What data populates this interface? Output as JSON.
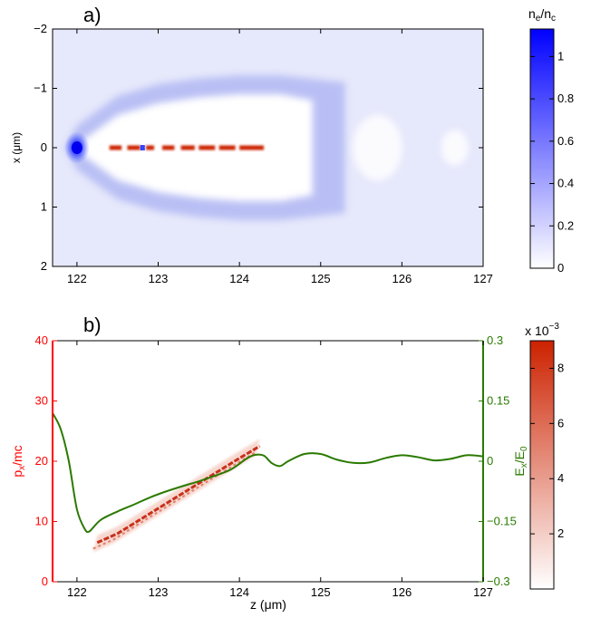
{
  "chart_data": [
    {
      "type": "heatmap",
      "panel_label": "a)",
      "title": "",
      "xlabel": "",
      "ylabel": "x (μm)",
      "xlim": [
        121.7,
        127.0
      ],
      "ylim": [
        -2,
        2
      ],
      "y_inverted": true,
      "xticks": [
        122,
        123,
        124,
        125,
        126,
        127
      ],
      "yticks": [
        -2,
        -1,
        0,
        1,
        2
      ],
      "ytick_labels": [
        "−2",
        "−1",
        "0",
        "1",
        "2"
      ],
      "colorbar": {
        "label": "n_e/n_c",
        "label_main": "n",
        "label_sub1": "e",
        "label_sep": "/n",
        "label_sub2": "c",
        "range": [
          0,
          1.13
        ],
        "ticks": [
          0,
          0.2,
          0.4,
          0.6,
          0.8,
          1
        ],
        "tick_labels": [
          "0",
          "0.2",
          "0.4",
          "0.6",
          "0.8",
          "1"
        ],
        "colors": [
          "#ffffff",
          "#0000ff"
        ]
      },
      "features": {
        "density_peak": {
          "z": 122.0,
          "x": 0,
          "value": 1.1
        },
        "bubble_sheath": [
          {
            "z": 122.0,
            "x_half_width": 0.05
          },
          {
            "z": 122.5,
            "x_half_width": 0.55
          },
          {
            "z": 123.0,
            "x_half_width": 0.75
          },
          {
            "z": 123.5,
            "x_half_width": 0.85
          },
          {
            "z": 124.0,
            "x_half_width": 0.9
          },
          {
            "z": 124.5,
            "x_half_width": 0.9
          }
        ],
        "electron_beam": {
          "z_start": 122.4,
          "z_end": 124.3,
          "x": 0,
          "color": "#cc2200"
        },
        "secondary_bubbles": [
          {
            "z": 125.7,
            "x_half_width": 0.55
          },
          {
            "z": 126.65,
            "x_half_width": 0.3
          }
        ]
      }
    },
    {
      "type": "heatmap",
      "panel_label": "b)",
      "title": "",
      "xlabel": "z (μm)",
      "ylabel": "p_x/mc",
      "ylabel_main": "p",
      "ylabel_sub": "x",
      "ylabel_rest": "/mc",
      "xlim": [
        121.7,
        127.0
      ],
      "ylim": [
        0,
        40
      ],
      "xticks": [
        122,
        123,
        124,
        125,
        126,
        127
      ],
      "yticks": [
        0,
        10,
        20,
        30,
        40
      ],
      "colorbar": {
        "label": "x 10^-3",
        "label_main": "x 10",
        "label_exp": "−3",
        "range": [
          0,
          0.009
        ],
        "ticks": [
          2,
          4,
          6,
          8
        ],
        "tick_labels": [
          "2",
          "4",
          "6",
          "8"
        ],
        "colors": [
          "#ffffff",
          "#cc2200"
        ]
      },
      "phase_space_beam": [
        {
          "z": 122.25,
          "p": 6.5
        },
        {
          "z": 122.5,
          "p": 8.0
        },
        {
          "z": 122.8,
          "p": 10.5
        },
        {
          "z": 123.1,
          "p": 13.0
        },
        {
          "z": 123.4,
          "p": 15.5
        },
        {
          "z": 123.7,
          "p": 18.0
        },
        {
          "z": 124.0,
          "p": 20.5
        },
        {
          "z": 124.25,
          "p": 22.5
        }
      ],
      "secondary_axis": {
        "label": "E_x/E_0",
        "label_main": "E",
        "label_sub1": "x",
        "label_sep": "/E",
        "label_sub2": "0",
        "ylim": [
          -0.3,
          0.3
        ],
        "ticks": [
          -0.3,
          -0.15,
          0,
          0.15,
          0.3
        ],
        "tick_labels": [
          "−0.3",
          "−0.15",
          "0",
          "0.15",
          "0.3"
        ],
        "color": "#2a7a00"
      },
      "series": [
        {
          "axis": "right",
          "color": "#2a7a00",
          "x": [
            121.7,
            121.8,
            121.9,
            122.0,
            122.1,
            122.15,
            122.2,
            122.3,
            122.5,
            122.7,
            122.9,
            123.1,
            123.3,
            123.5,
            123.7,
            123.9,
            124.1,
            124.2,
            124.3,
            124.4,
            124.5,
            124.6,
            124.8,
            125.0,
            125.2,
            125.4,
            125.6,
            125.8,
            126.0,
            126.2,
            126.4,
            126.6,
            126.8,
            127.0
          ],
          "y": [
            0.12,
            0.08,
            0.0,
            -0.12,
            -0.17,
            -0.175,
            -0.165,
            -0.145,
            -0.125,
            -0.108,
            -0.09,
            -0.075,
            -0.062,
            -0.05,
            -0.036,
            -0.02,
            0.008,
            0.016,
            0.014,
            -0.005,
            -0.012,
            0.0,
            0.018,
            0.018,
            0.004,
            -0.004,
            -0.003,
            0.008,
            0.015,
            0.01,
            0.002,
            0.006,
            0.015,
            0.012
          ]
        }
      ],
      "left_axis_color": "#ff0000"
    }
  ]
}
